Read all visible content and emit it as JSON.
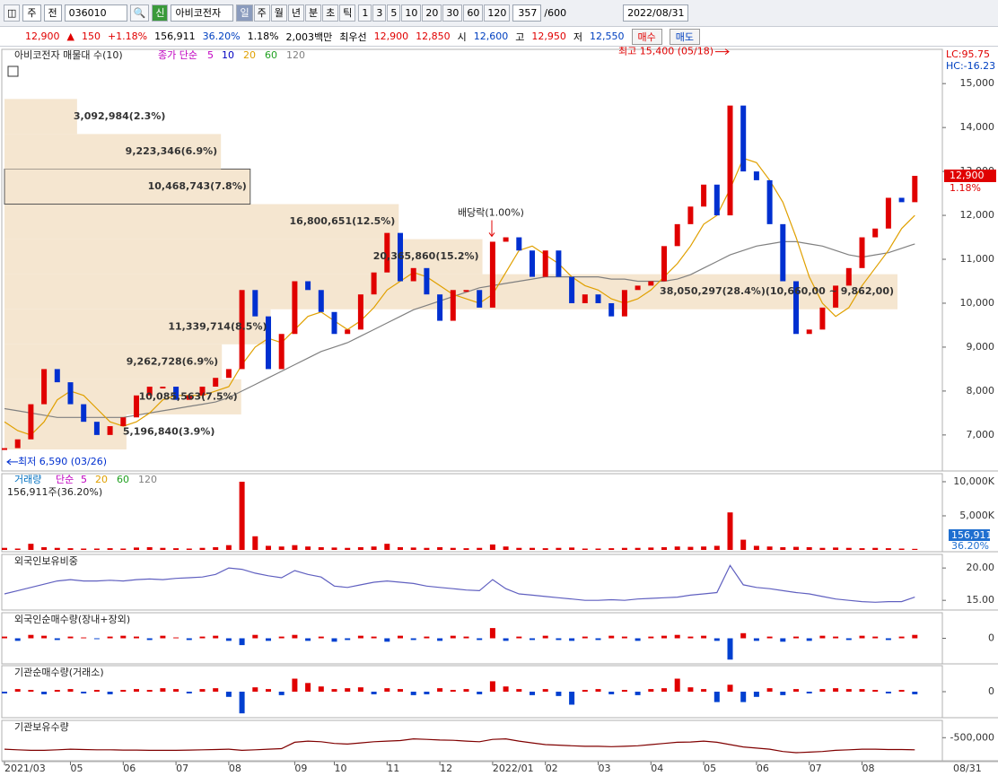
{
  "toolbar": {
    "period": "주",
    "prev": "전",
    "code": "036010",
    "badge": "신",
    "name": "아비코전자",
    "intervals": [
      "일",
      "주",
      "월",
      "년",
      "분",
      "초",
      "틱"
    ],
    "counts": [
      "1",
      "3",
      "5",
      "10",
      "20",
      "30",
      "60",
      "120"
    ],
    "bars": "357",
    "bars_max": "/600",
    "date": "2022/08/31"
  },
  "quote": {
    "price": "12,900",
    "arrow": "▲",
    "change": "150",
    "change_pct": "+1.18%",
    "volume": "156,911",
    "turnover_pct": "36.20%",
    "rate": "1.18%",
    "amount": "2,003백만",
    "best_label": "최우선",
    "ask": "12,900",
    "bid": "12,850",
    "open_label": "시",
    "open": "12,600",
    "high_label": "고",
    "high": "12,950",
    "low_label": "저",
    "low": "12,550",
    "buy": "매수",
    "sell": "매도"
  },
  "price_panel": {
    "title": "아비코전자 매물대 수(10)",
    "ma_label": "종가 단순",
    "ma_periods": [
      {
        "label": "5",
        "color": "#c000c0"
      },
      {
        "label": "10",
        "color": "#0000c0"
      },
      {
        "label": "20",
        "color": "#e0a000"
      },
      {
        "label": "60",
        "color": "#20a020"
      },
      {
        "label": "120",
        "color": "#808080"
      }
    ],
    "lc": "LC:95.75",
    "hc": "HC:-16.23",
    "ylim": [
      6180,
      15780
    ],
    "yticks": [
      {
        "value": 7000,
        "label": "7,000"
      },
      {
        "value": 8000,
        "label": "8,000"
      },
      {
        "value": 9000,
        "label": "9,000"
      },
      {
        "value": 10000,
        "label": "10,000"
      },
      {
        "value": 11000,
        "label": "11,000"
      },
      {
        "value": 12000,
        "label": "12,000"
      },
      {
        "value": 13000,
        "label": "13,000"
      },
      {
        "value": 14000,
        "label": "14,000"
      },
      {
        "value": 15000,
        "label": "15,000"
      }
    ],
    "close": {
      "up_color": "#e00000",
      "down_color": "#0030d0",
      "values": [
        6700,
        6900,
        7700,
        8500,
        8200,
        7700,
        7300,
        7000,
        7200,
        7400,
        7900,
        8100,
        8100,
        7800,
        7900,
        8100,
        8300,
        8500,
        10300,
        9700,
        8500,
        9300,
        10500,
        10300,
        9800,
        9300,
        9400,
        10200,
        10700,
        11600,
        10500,
        10800,
        10200,
        9600,
        10300,
        10300,
        9900,
        11400,
        11500,
        11200,
        10600,
        11200,
        10600,
        10000,
        10200,
        10000,
        9700,
        10300,
        10400,
        10500,
        11300,
        11800,
        12200,
        12700,
        12000,
        14500,
        13000,
        12800,
        11800,
        10500,
        9300,
        9400,
        9900,
        10400,
        10800,
        11500,
        11700,
        12400,
        12300,
        12900
      ]
    },
    "ma20": {
      "color": "#e0a000",
      "values": [
        7300,
        7100,
        7000,
        7300,
        7800,
        8000,
        7900,
        7600,
        7300,
        7200,
        7300,
        7500,
        7800,
        7900,
        7900,
        7900,
        8000,
        8100,
        8600,
        9000,
        9200,
        9100,
        9400,
        9700,
        9800,
        9600,
        9400,
        9600,
        9900,
        10300,
        10500,
        10700,
        10600,
        10400,
        10200,
        10100,
        10000,
        10200,
        10700,
        11200,
        11300,
        11100,
        10900,
        10600,
        10400,
        10300,
        10100,
        10000,
        10100,
        10300,
        10600,
        10900,
        11300,
        11800,
        12000,
        12600,
        13300,
        13200,
        12800,
        12300,
        11500,
        10600,
        10000,
        9700,
        9900,
        10400,
        10800,
        11200,
        11700,
        12000
      ]
    },
    "ma120": {
      "color": "#808080",
      "values": [
        7600,
        7550,
        7500,
        7450,
        7400,
        7400,
        7400,
        7400,
        7400,
        7400,
        7450,
        7500,
        7550,
        7600,
        7650,
        7700,
        7750,
        7850,
        8000,
        8150,
        8300,
        8450,
        8600,
        8750,
        8900,
        9000,
        9100,
        9250,
        9400,
        9550,
        9700,
        9850,
        9950,
        10050,
        10150,
        10250,
        10350,
        10400,
        10450,
        10500,
        10550,
        10600,
        10600,
        10600,
        10600,
        10600,
        10550,
        10550,
        10500,
        10500,
        10500,
        10550,
        10650,
        10800,
        10950,
        11100,
        11200,
        11300,
        11350,
        11400,
        11400,
        11350,
        11300,
        11200,
        11100,
        11050,
        11100,
        11150,
        11250,
        11350
      ]
    },
    "volume_profile": {
      "edges": [
        6670,
        7468,
        8266,
        9064,
        9862,
        10660,
        11458,
        12256,
        13054,
        13852,
        14650
      ],
      "volumes": [
        5196840,
        10085563,
        9262728,
        11339714,
        38050297,
        20365860,
        16800651,
        10468743,
        9223346,
        3092984
      ],
      "labels": [
        "5,196,840(3.9%)",
        "10,085,563(7.5%)",
        "9,262,728(6.9%)",
        "11,339,714(8.5%)",
        "38,050,297(28.4%)(10,660,00 ~ 9,862,00)",
        "20,365,860(15.2%)",
        "16,800,651(12.5%)",
        "10,468,743(7.8%)",
        "9,223,346(6.9%)",
        "3,092,984(2.3%)"
      ]
    },
    "high_note": {
      "label": "최고 15,400 (05/18)",
      "value": 15400
    },
    "low_note": {
      "label": "최저 6,590 (03/26)",
      "value": 6590
    },
    "dividend_note": {
      "label": "배당락(1.00%)",
      "value": 11400
    },
    "last": {
      "label": "12,900",
      "value": 12900,
      "change": "1.18%"
    }
  },
  "volume_panel": {
    "title": "거래량",
    "ma_label": "단순",
    "ma_periods": [
      {
        "label": "5",
        "color": "#c000c0"
      },
      {
        "label": "20",
        "color": "#e0a000"
      },
      {
        "label": "60",
        "color": "#20a020"
      },
      {
        "label": "120",
        "color": "#808080"
      }
    ],
    "info": "156,911주(36.20%)",
    "ylim": [
      0,
      11180
    ],
    "yticks": [
      {
        "value": 5000,
        "label": "5,000K"
      },
      {
        "value": 10000,
        "label": "10,000K"
      }
    ],
    "color": "#e00000",
    "values": [
      300,
      200,
      900,
      400,
      300,
      250,
      200,
      200,
      250,
      200,
      350,
      400,
      300,
      250,
      200,
      300,
      400,
      700,
      10000,
      2000,
      600,
      500,
      700,
      500,
      400,
      350,
      300,
      400,
      500,
      900,
      400,
      350,
      300,
      400,
      300,
      250,
      300,
      800,
      500,
      300,
      300,
      250,
      300,
      350,
      200,
      200,
      250,
      300,
      300,
      350,
      400,
      500,
      450,
      500,
      600,
      5500,
      1500,
      600,
      500,
      400,
      450,
      400,
      300,
      350,
      300,
      250,
      300,
      250,
      200,
      156.911
    ],
    "last": {
      "label": "156,911",
      "change": "36.20%"
    }
  },
  "foreign_ratio_panel": {
    "title": "외국인보유비중",
    "ylim": [
      13.5,
      22.1
    ],
    "yticks": [
      {
        "value": 15,
        "label": "15.00"
      },
      {
        "value": 20,
        "label": "20.00"
      }
    ],
    "color": "#6060c0",
    "values": [
      16.0,
      16.5,
      17.0,
      17.5,
      18.0,
      18.2,
      18.0,
      18.0,
      18.1,
      18.0,
      18.2,
      18.3,
      18.2,
      18.4,
      18.5,
      18.6,
      19.0,
      20.0,
      19.8,
      19.2,
      18.8,
      18.5,
      19.6,
      19.0,
      18.6,
      17.2,
      17.0,
      17.4,
      17.8,
      18.0,
      17.8,
      17.6,
      17.2,
      17.0,
      16.8,
      16.6,
      16.5,
      18.2,
      16.8,
      16.0,
      15.8,
      15.6,
      15.4,
      15.2,
      15.0,
      15.0,
      15.1,
      15.0,
      15.2,
      15.3,
      15.4,
      15.5,
      15.8,
      16.0,
      16.2,
      20.4,
      17.4,
      17.0,
      16.8,
      16.5,
      16.2,
      16.0,
      15.6,
      15.2,
      15.0,
      14.8,
      14.7,
      14.8,
      14.8,
      15.5
    ]
  },
  "foreign_net_panel": {
    "title": "외국인순매수량(장내+장외)",
    "ylim": [
      -30,
      30
    ],
    "yticks": [
      0
    ],
    "up_color": "#e00000",
    "down_color": "#0040d0",
    "values": [
      2,
      -3,
      4,
      3,
      -2,
      2,
      1,
      -1,
      2,
      3,
      2,
      -2,
      3,
      1,
      -2,
      2,
      3,
      -3,
      -8,
      4,
      -3,
      2,
      4,
      -3,
      2,
      -4,
      -2,
      3,
      2,
      -4,
      3,
      -2,
      2,
      -3,
      3,
      2,
      -2,
      12,
      -3,
      2,
      -2,
      3,
      -2,
      -3,
      2,
      -2,
      3,
      2,
      -3,
      2,
      3,
      4,
      2,
      3,
      -3,
      -25,
      6,
      -3,
      2,
      -4,
      2,
      -3,
      3,
      2,
      -2,
      3,
      2,
      -2,
      2,
      4
    ]
  },
  "institution_net_panel": {
    "title": "기관순매수량(거래소)",
    "ylim": [
      -30,
      30
    ],
    "yticks": [
      0
    ],
    "up_color": "#e00000",
    "down_color": "#0040d0",
    "values": [
      -2,
      3,
      2,
      -3,
      2,
      3,
      -2,
      2,
      -3,
      2,
      3,
      2,
      4,
      3,
      -2,
      3,
      4,
      -6,
      -25,
      5,
      3,
      -4,
      15,
      10,
      6,
      3,
      4,
      5,
      -3,
      4,
      3,
      -4,
      -3,
      4,
      2,
      3,
      -3,
      12,
      6,
      3,
      -4,
      3,
      -5,
      -15,
      2,
      3,
      -3,
      2,
      -4,
      3,
      4,
      15,
      5,
      3,
      -12,
      8,
      -12,
      -6,
      4,
      -4,
      3,
      -2,
      3,
      4,
      3,
      3,
      2,
      -2,
      2,
      -3
    ]
  },
  "institution_hold_panel": {
    "title": "기관보유수량",
    "ylim": [
      -900000,
      -200000
    ],
    "yticks": [
      {
        "value": -500000,
        "label": "-500,000"
      }
    ],
    "color": "#800000",
    "values": [
      -700000,
      -710000,
      -720000,
      -720000,
      -710000,
      -700000,
      -705000,
      -710000,
      -710000,
      -715000,
      -715000,
      -720000,
      -720000,
      -720000,
      -715000,
      -710000,
      -705000,
      -700000,
      -720000,
      -710000,
      -700000,
      -690000,
      -580000,
      -560000,
      -570000,
      -600000,
      -610000,
      -590000,
      -570000,
      -560000,
      -550000,
      -520000,
      -530000,
      -540000,
      -545000,
      -560000,
      -570000,
      -530000,
      -520000,
      -560000,
      -590000,
      -620000,
      -630000,
      -640000,
      -650000,
      -650000,
      -655000,
      -650000,
      -640000,
      -620000,
      -600000,
      -580000,
      -575000,
      -560000,
      -580000,
      -620000,
      -660000,
      -680000,
      -700000,
      -740000,
      -760000,
      -750000,
      -740000,
      -720000,
      -710000,
      -700000,
      -700000,
      -705000,
      -705000,
      -710000
    ]
  },
  "x_axis": {
    "categories": [
      "2021/03",
      null,
      null,
      null,
      null,
      "05",
      null,
      null,
      null,
      "06",
      null,
      null,
      null,
      "07",
      null,
      null,
      null,
      "08",
      null,
      null,
      null,
      null,
      "09",
      null,
      null,
      "10",
      null,
      null,
      null,
      "11",
      null,
      null,
      null,
      "12",
      null,
      null,
      null,
      "2022/01",
      null,
      null,
      null,
      "02",
      null,
      null,
      null,
      "03",
      null,
      null,
      null,
      "04",
      null,
      null,
      null,
      "05",
      null,
      null,
      null,
      "06",
      null,
      null,
      null,
      "07",
      null,
      null,
      null,
      "08",
      null,
      null,
      null,
      null
    ],
    "end_label": "08/31"
  }
}
